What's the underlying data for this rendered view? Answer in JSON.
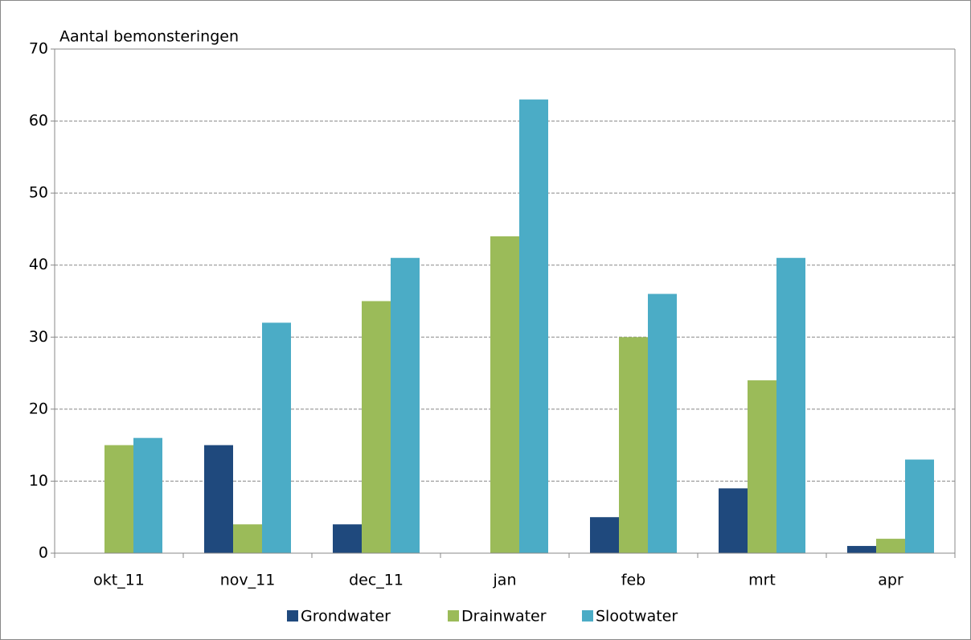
{
  "chart_data": {
    "type": "bar",
    "title": "Aantal bemonsteringen",
    "categories": [
      "okt_11",
      "nov_11",
      "dec_11",
      "jan",
      "feb",
      "mrt",
      "apr"
    ],
    "series": [
      {
        "name": "Grondwater",
        "color": "#1f497d",
        "values": [
          0,
          15,
          4,
          0,
          5,
          9,
          1
        ]
      },
      {
        "name": "Drainwater",
        "color": "#9bbb59",
        "values": [
          15,
          4,
          35,
          44,
          30,
          24,
          2
        ]
      },
      {
        "name": "Slootwater",
        "color": "#4bacc6",
        "values": [
          16,
          32,
          41,
          63,
          36,
          41,
          13
        ]
      }
    ],
    "ylim": [
      0,
      70
    ],
    "yticks": [
      0,
      10,
      20,
      30,
      40,
      50,
      60,
      70
    ],
    "grid": true,
    "legend": "bottom"
  }
}
